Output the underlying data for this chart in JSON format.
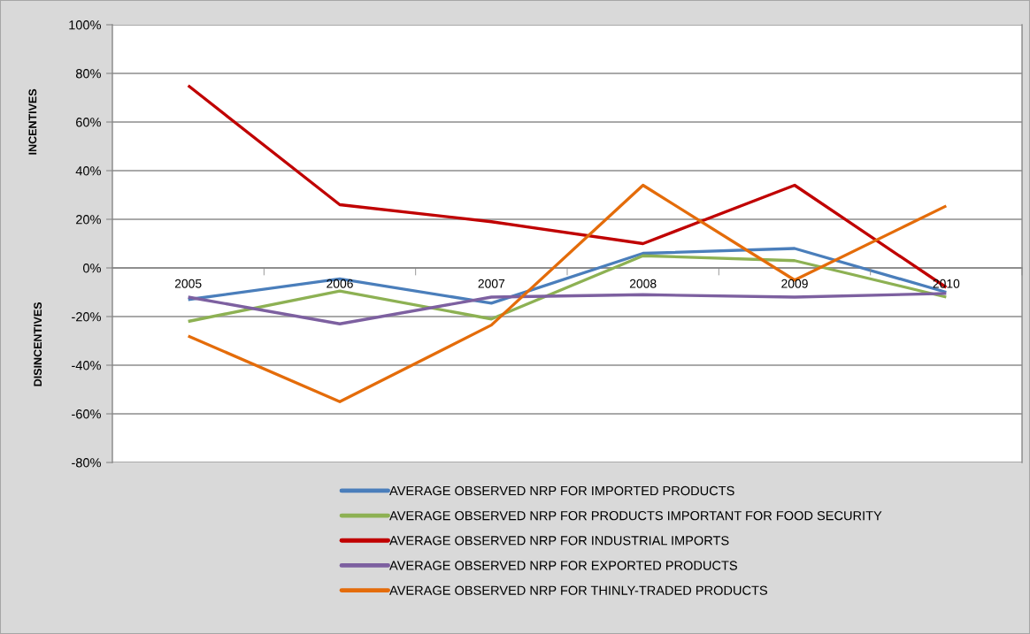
{
  "chart_data": {
    "type": "line",
    "ylabel": "INCENTIVES",
    "annotations": [
      "DISINCENTIVES"
    ],
    "categories": [
      "2005",
      "2006",
      "2007",
      "2008",
      "2009",
      "2010"
    ],
    "series": [
      {
        "name": "AVERAGE OBSERVED NRP FOR IMPORTED PRODUCTS",
        "color": "#4a7ebb",
        "values": [
          -13,
          -4.5,
          -14.5,
          6,
          8,
          -10
        ]
      },
      {
        "name": "AVERAGE OBSERVED NRP FOR PRODUCTS IMPORTANT FOR FOOD SECURITY",
        "color": "#8db153",
        "values": [
          -22,
          -9.5,
          -21,
          5,
          3,
          -12
        ]
      },
      {
        "name": "AVERAGE OBSERVED NRP FOR INDUSTRIAL IMPORTS",
        "color": "#c00000",
        "values": [
          75,
          26,
          19,
          10,
          34,
          -8
        ]
      },
      {
        "name": "AVERAGE OBSERVED NRP FOR EXPORTED PRODUCTS",
        "color": "#7d60a0",
        "values": [
          -12,
          -23,
          -12,
          -11,
          -12,
          -10.5
        ]
      },
      {
        "name": "AVERAGE OBSERVED NRP FOR THINLY-TRADED PRODUCTS",
        "color": "#e46c0a",
        "values": [
          -28,
          -55,
          -23.5,
          34,
          -5,
          25.5
        ]
      }
    ],
    "ylim": [
      -80,
      100
    ],
    "yticks": [
      {
        "value": -80,
        "label": "-80%"
      },
      {
        "value": -60,
        "label": "-60%"
      },
      {
        "value": -40,
        "label": "-40%"
      },
      {
        "value": -20,
        "label": "-20%"
      },
      {
        "value": 0,
        "label": "0%"
      },
      {
        "value": 20,
        "label": "20%"
      },
      {
        "value": 40,
        "label": "40%"
      },
      {
        "value": 60,
        "label": "60%"
      },
      {
        "value": 80,
        "label": "80%"
      },
      {
        "value": 100,
        "label": "100%"
      }
    ],
    "grid": "y",
    "legend": "bottom",
    "line_style": "solid"
  }
}
